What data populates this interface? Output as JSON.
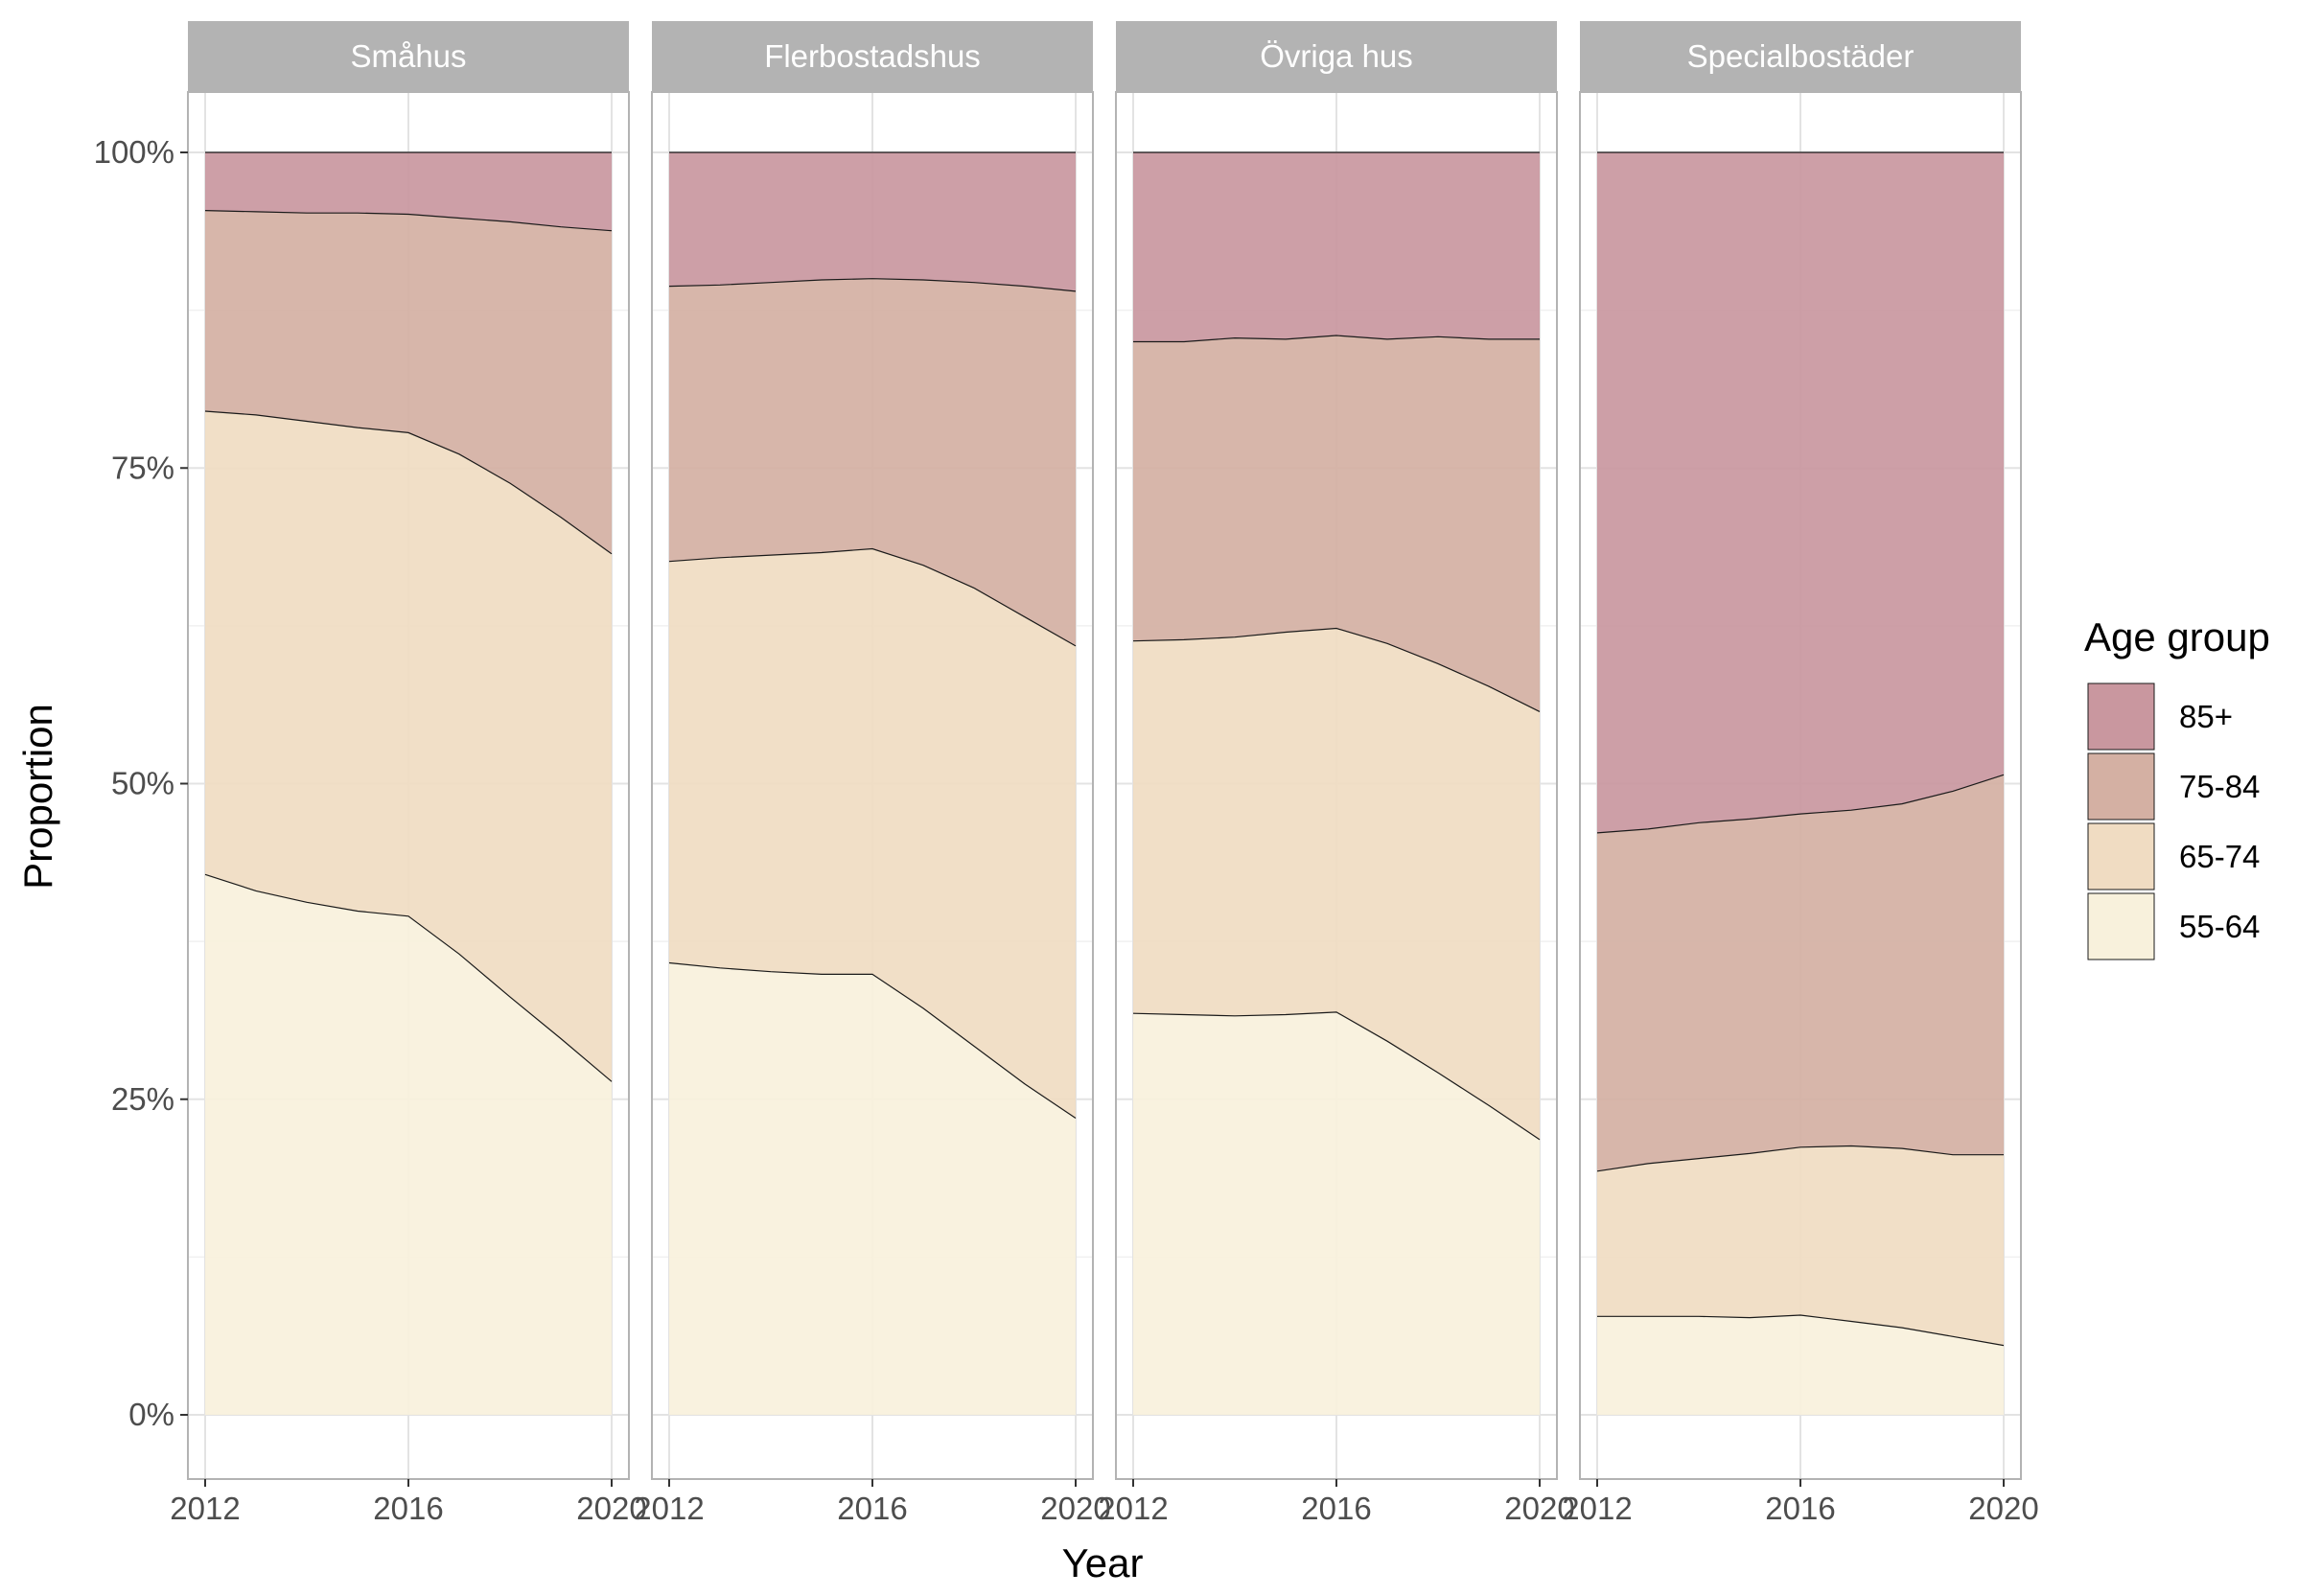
{
  "chart_data": {
    "type": "area",
    "stacked": true,
    "normalized": true,
    "xlabel": "Year",
    "ylabel": "Proportion",
    "ylim": [
      0,
      1
    ],
    "x_ticks": [
      "2012",
      "2016",
      "2020"
    ],
    "y_ticks": [
      "0%",
      "25%",
      "50%",
      "75%",
      "100%"
    ],
    "y_tick_values": [
      0,
      0.25,
      0.5,
      0.75,
      1
    ],
    "x_range": [
      2012,
      2020
    ],
    "grid": true,
    "legend": {
      "title": "Age group",
      "placement": "right",
      "entries": [
        "85+",
        "75-84",
        "65-74",
        "55-64"
      ]
    },
    "series_colors": {
      "55-64": "#f8f1dc",
      "65-74": "#f0dcc2",
      "75-84": "#d4b0a3",
      "85+": "#c9979f"
    },
    "x": [
      2012,
      2013,
      2014,
      2015,
      2016,
      2017,
      2018,
      2019,
      2020
    ],
    "panels": [
      {
        "title": "Småhus",
        "cumulative_boundaries": {
          "55-64": [
            0.428,
            0.415,
            0.406,
            0.399,
            0.395,
            0.365,
            0.331,
            0.298,
            0.264
          ],
          "65-74": [
            0.795,
            0.792,
            0.787,
            0.782,
            0.778,
            0.761,
            0.738,
            0.711,
            0.682
          ],
          "75-84": [
            0.954,
            0.953,
            0.952,
            0.952,
            0.951,
            0.948,
            0.945,
            0.941,
            0.938
          ],
          "85+": [
            1,
            1,
            1,
            1,
            1,
            1,
            1,
            1,
            1
          ]
        }
      },
      {
        "title": "Flerbostadshus",
        "cumulative_boundaries": {
          "55-64": [
            0.358,
            0.354,
            0.351,
            0.349,
            0.349,
            0.322,
            0.292,
            0.262,
            0.235
          ],
          "65-74": [
            0.676,
            0.679,
            0.681,
            0.683,
            0.686,
            0.673,
            0.655,
            0.632,
            0.609
          ],
          "75-84": [
            0.894,
            0.895,
            0.897,
            0.899,
            0.9,
            0.899,
            0.897,
            0.894,
            0.89
          ],
          "85+": [
            1,
            1,
            1,
            1,
            1,
            1,
            1,
            1,
            1
          ]
        }
      },
      {
        "title": "Övriga hus",
        "cumulative_boundaries": {
          "55-64": [
            0.318,
            0.317,
            0.316,
            0.317,
            0.319,
            0.296,
            0.271,
            0.245,
            0.218
          ],
          "65-74": [
            0.613,
            0.614,
            0.616,
            0.62,
            0.623,
            0.611,
            0.595,
            0.577,
            0.557
          ],
          "75-84": [
            0.85,
            0.85,
            0.853,
            0.852,
            0.855,
            0.852,
            0.854,
            0.852,
            0.852
          ],
          "85+": [
            1,
            1,
            1,
            1,
            1,
            1,
            1,
            1,
            1
          ]
        }
      },
      {
        "title": "Specialbostäder",
        "cumulative_boundaries": {
          "55-64": [
            0.078,
            0.078,
            0.078,
            0.077,
            0.079,
            0.074,
            0.069,
            0.062,
            0.055
          ],
          "65-74": [
            0.193,
            0.199,
            0.203,
            0.207,
            0.212,
            0.213,
            0.211,
            0.206,
            0.206
          ],
          "75-84": [
            0.461,
            0.464,
            0.469,
            0.472,
            0.476,
            0.479,
            0.484,
            0.494,
            0.507
          ],
          "85+": [
            1,
            1,
            1,
            1,
            1,
            1,
            1,
            1,
            1
          ]
        }
      }
    ]
  }
}
